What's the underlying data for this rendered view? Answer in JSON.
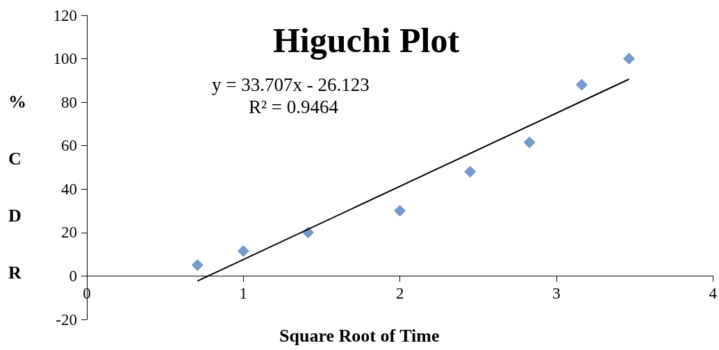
{
  "chart_data": {
    "type": "scatter",
    "title": "Higuchi Plot",
    "xlabel": "Square Root of Time",
    "ylabel": "%CDR",
    "annotations": [
      "y = 33.707x - 26.123",
      "R² = 0.9464"
    ],
    "series": [
      {
        "type": "scatter",
        "color": "#4f81bd",
        "marker": "diamond",
        "x": [
          0.707,
          1,
          1.414,
          2,
          2.449,
          2.828,
          3.162,
          3.464
        ],
        "values": [
          5,
          11.5,
          20,
          30,
          48,
          61.5,
          88,
          100
        ]
      },
      {
        "type": "line",
        "color": "#000000",
        "marker": "none",
        "x": [
          0.707,
          3.464
        ],
        "values": [
          -2.3,
          90.6
        ]
      }
    ],
    "xlim": [
      0,
      4
    ],
    "xticks": [
      0,
      1,
      2,
      3,
      4
    ],
    "ylim": [
      -20,
      120
    ],
    "yticks": [
      -20,
      0,
      20,
      40,
      60,
      80,
      100,
      120
    ],
    "grid": false
  }
}
